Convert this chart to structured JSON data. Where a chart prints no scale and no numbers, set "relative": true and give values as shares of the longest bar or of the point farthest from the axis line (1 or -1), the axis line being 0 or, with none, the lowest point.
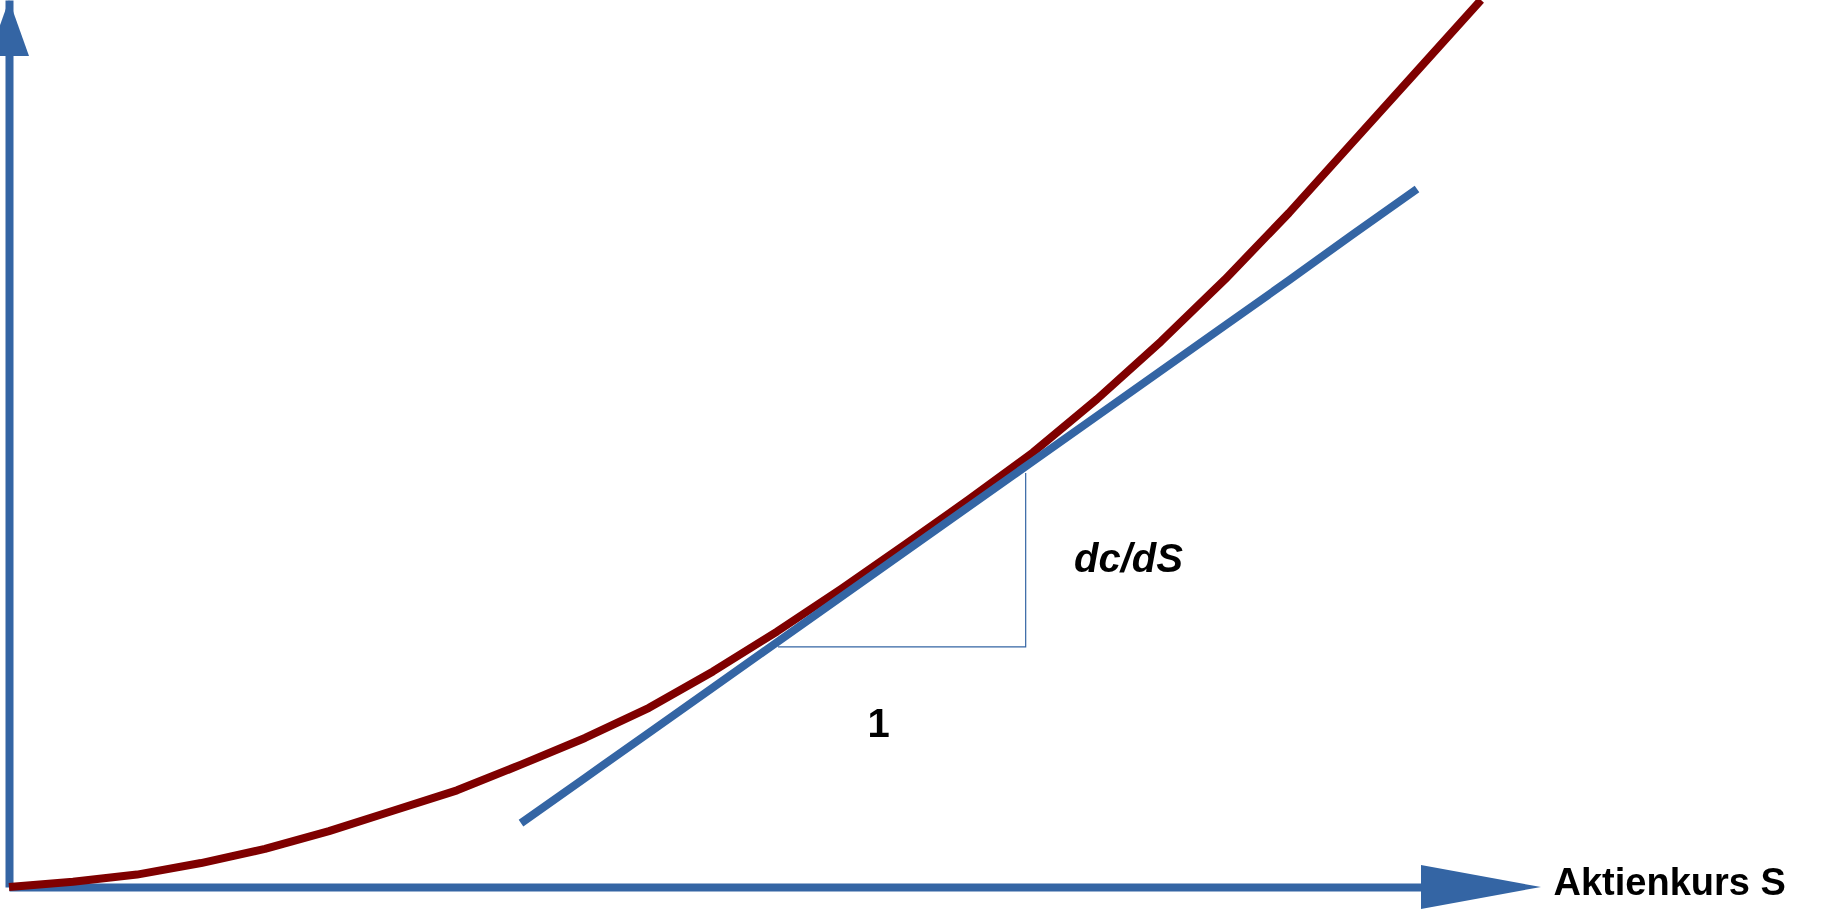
{
  "chart_data": {
    "type": "line",
    "relative": true,
    "xlabel": "Aktienkurs S",
    "grid": false,
    "marker": "none",
    "categories": [
      null,
      null,
      null,
      null,
      null,
      null,
      null,
      null,
      null,
      null,
      null,
      null,
      null,
      null,
      null,
      null,
      null,
      null,
      null,
      null,
      null,
      null,
      null,
      null
    ],
    "series": [
      {
        "color": "#7f0000",
        "values": [
          0,
          0.006,
          0.014,
          0.027,
          0.043,
          0.063,
          0.086,
          0.109,
          0.138,
          0.168,
          0.202,
          0.243,
          0.288,
          0.336,
          0.386,
          0.437,
          0.49,
          0.55,
          0.615,
          0.685,
          0.76,
          0.84,
          0.92,
          1.0
        ]
      },
      {
        "color": "#3465a4",
        "values": [
          null,
          null,
          null,
          null,
          null,
          null,
          null,
          null,
          0.072,
          0.123,
          0.174,
          0.225,
          0.276,
          0.327,
          0.378,
          0.429,
          0.48,
          0.531,
          0.582,
          0.633,
          0.684,
          0.736,
          0.787,
          null
        ]
      }
    ],
    "annotations": [
      "dc/dS",
      "1"
    ]
  }
}
